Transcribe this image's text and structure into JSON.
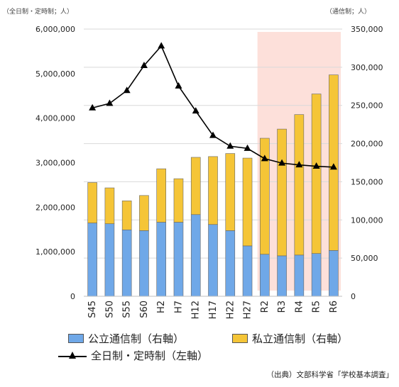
{
  "unit_left": "（全日制・定時制；人）",
  "unit_right": "（通信制；人）",
  "legend": {
    "public": "公立通信制（右軸）",
    "private": "私立通信制（右軸）",
    "fulltime": "全日制・定時制（左軸）"
  },
  "source": "（出典）文部科学省「学校基本調査」",
  "colors": {
    "public": "#6fa8e8",
    "private": "#f5c537",
    "line": "#000000",
    "highlight": "#fde0da"
  },
  "chart_data": {
    "type": "bar",
    "stacked": true,
    "categories": [
      "S45",
      "S50",
      "S55",
      "S60",
      "H2",
      "H7",
      "H12",
      "H17",
      "H22",
      "H27",
      "R2",
      "R3",
      "R4",
      "R5",
      "R6"
    ],
    "y_left": {
      "ticks": [
        "0",
        "1,000,000",
        "2,000,000",
        "3,000,000",
        "4,000,000",
        "5,000,000",
        "6,000,000"
      ],
      "range": [
        0,
        6000000
      ]
    },
    "y_right": {
      "ticks": [
        "0",
        "50,000",
        "100,000",
        "150,000",
        "200,000",
        "250,000",
        "300,000",
        "350,000"
      ],
      "range": [
        0,
        350000
      ]
    },
    "series": [
      {
        "name": "公立通信制（右軸）",
        "axis": "right",
        "values": [
          96000,
          95000,
          87000,
          86000,
          97000,
          97000,
          107000,
          94000,
          86000,
          66000,
          55000,
          53000,
          54000,
          56000,
          60000
        ]
      },
      {
        "name": "私立通信制（右軸）",
        "axis": "right",
        "values": [
          53000,
          47000,
          38000,
          46000,
          70000,
          57000,
          75000,
          89000,
          101000,
          115000,
          152000,
          166000,
          184000,
          209000,
          230000
        ]
      },
      {
        "name": "全日制・定時制（左軸）",
        "axis": "left",
        "type": "line",
        "values": [
          4230000,
          4330000,
          4620000,
          5180000,
          5620000,
          4720000,
          4160000,
          3610000,
          3370000,
          3320000,
          3090000,
          2990000,
          2950000,
          2920000,
          2900000
        ]
      }
    ],
    "highlight_categories": [
      "R2",
      "R3",
      "R4",
      "R5",
      "R6"
    ]
  }
}
